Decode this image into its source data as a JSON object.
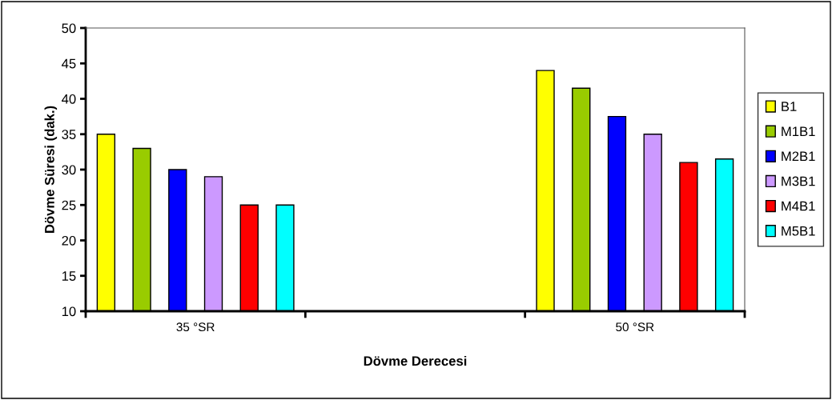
{
  "chart_data": {
    "type": "bar",
    "xlabel": "Dövme Derecesi",
    "ylabel": "Dövme Süresi (dak.)",
    "categories": [
      "35 °SR",
      null,
      "50 °SR"
    ],
    "series": [
      {
        "name": "B1",
        "color": "#ffff00",
        "values": [
          35,
          null,
          44
        ]
      },
      {
        "name": "M1B1",
        "color": "#99cc00",
        "values": [
          33,
          null,
          41.5
        ]
      },
      {
        "name": "M2B1",
        "color": "#0000ff",
        "values": [
          30,
          null,
          37.5
        ]
      },
      {
        "name": "M3B1",
        "color": "#cc99ff",
        "values": [
          29,
          null,
          35
        ]
      },
      {
        "name": "M4B1",
        "color": "#ff0000",
        "values": [
          25,
          null,
          31
        ]
      },
      {
        "name": "M5B1",
        "color": "#00ffff",
        "values": [
          25,
          null,
          31.5
        ]
      }
    ],
    "ylim": [
      10,
      50
    ],
    "yticks": [
      10,
      15,
      20,
      25,
      30,
      35,
      40,
      45,
      50
    ],
    "grid": false,
    "legend": "right"
  }
}
